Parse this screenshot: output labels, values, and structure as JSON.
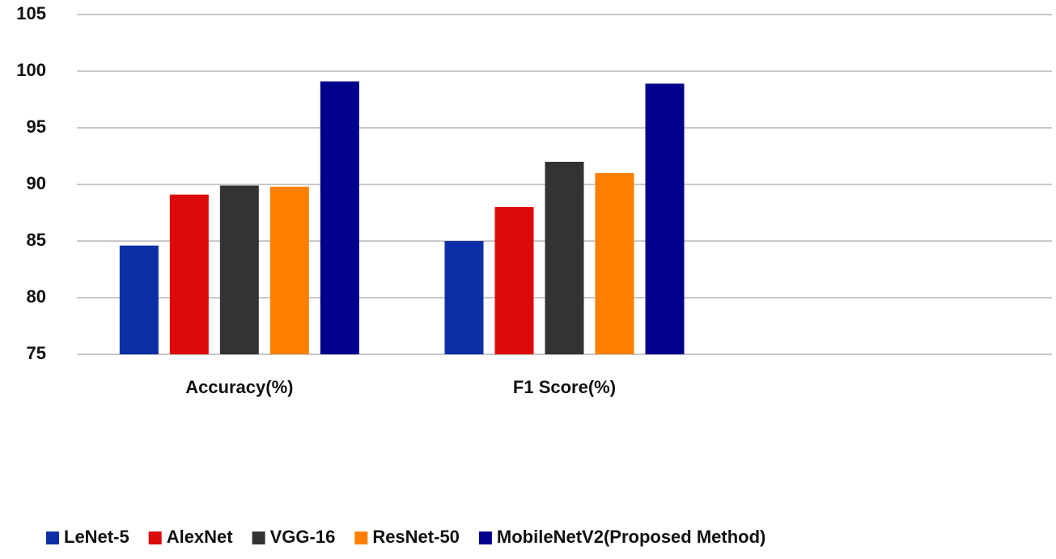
{
  "chart_data": {
    "type": "bar",
    "categories": [
      "Accuracy(%)",
      "F1 Score(%)",
      null
    ],
    "series": [
      {
        "name": "LeNet-5",
        "color": "#0d2fa6",
        "values": [
          84.6,
          85,
          null
        ]
      },
      {
        "name": "AlexNet",
        "color": "#dd0a0a",
        "values": [
          89.1,
          88,
          null
        ]
      },
      {
        "name": "VGG-16",
        "color": "#333333",
        "values": [
          89.9,
          92,
          null
        ]
      },
      {
        "name": "ResNet-50",
        "color": "#ff7f00",
        "values": [
          89.8,
          91,
          null
        ]
      },
      {
        "name": "MobileNetV2(Proposed Method)",
        "color": "#00008b",
        "values": [
          99.1,
          98.9,
          null
        ]
      }
    ],
    "ylim": [
      75,
      105
    ],
    "yticks": [
      75,
      80,
      85,
      90,
      95,
      100,
      105
    ],
    "grid": true,
    "legend": "bottom"
  }
}
